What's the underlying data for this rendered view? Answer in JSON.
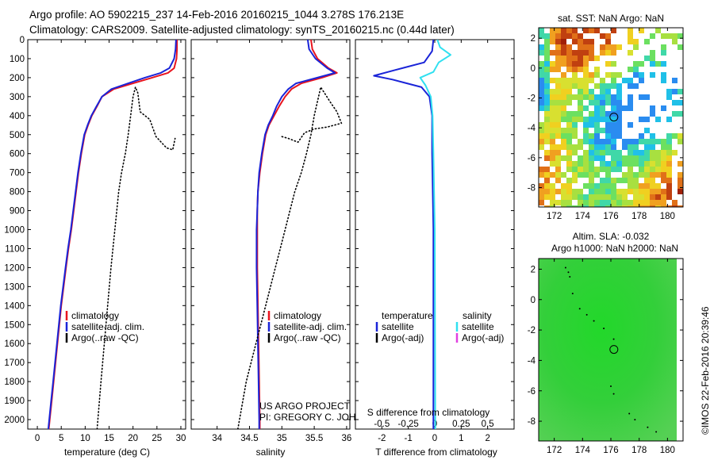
{
  "header": {
    "line1": "Argo profile: AO 5902215_237 14-Feb-2016 20160215_1044 3.278S 176.213E",
    "line2": "Climatology: CARS2009. Satellite-adjusted climatology: synTS_20160215.nc (0.44d later)"
  },
  "colors": {
    "climatology": "#e8141e",
    "satellite": "#1a24d8",
    "argo": "#000000",
    "salinity_satellite": "#30e0f0",
    "salinity_argo": "#e040e0"
  },
  "chart_data": [
    {
      "type": "line",
      "id": "temperature_profile",
      "xlabel": "temperature (deg C)",
      "xlim": [
        -2,
        31
      ],
      "xticks": [
        "0",
        "5",
        "10",
        "15",
        "20",
        "25",
        "30"
      ],
      "ylim": [
        2050,
        0
      ],
      "yticks": [
        "0",
        "100",
        "200",
        "300",
        "400",
        "500",
        "600",
        "700",
        "800",
        "900",
        "1000",
        "1100",
        "1200",
        "1300",
        "1400",
        "1500",
        "1600",
        "1700",
        "1800",
        "1900",
        "2000"
      ],
      "legend": [
        "climatology",
        "satellite-adj. clim.",
        "Argo(..raw -QC)"
      ],
      "series": [
        {
          "name": "climatology",
          "color": "#e8141e",
          "style": "solid",
          "points": [
            [
              29.2,
              0
            ],
            [
              29.2,
              50
            ],
            [
              29.1,
              100
            ],
            [
              28.6,
              150
            ],
            [
              27.3,
              175
            ],
            [
              24,
              200
            ],
            [
              20,
              230
            ],
            [
              16,
              260
            ],
            [
              13.5,
              300
            ],
            [
              12.5,
              350
            ],
            [
              11.4,
              400
            ],
            [
              10.6,
              450
            ],
            [
              9.9,
              500
            ],
            [
              9.2,
              600
            ],
            [
              8.6,
              700
            ],
            [
              8.1,
              800
            ],
            [
              7.6,
              900
            ],
            [
              7.1,
              1000
            ],
            [
              6.5,
              1100
            ],
            [
              6,
              1200
            ],
            [
              5.5,
              1300
            ],
            [
              5,
              1400
            ],
            [
              4.6,
              1500
            ],
            [
              4.2,
              1600
            ],
            [
              3.8,
              1700
            ],
            [
              3.4,
              1800
            ],
            [
              3,
              1900
            ],
            [
              2.6,
              2000
            ],
            [
              2.4,
              2050
            ]
          ]
        },
        {
          "name": "satellite-adj. clim.",
          "color": "#1a24d8",
          "style": "solid",
          "points": [
            [
              29,
              0
            ],
            [
              28.9,
              50
            ],
            [
              28.6,
              100
            ],
            [
              27.6,
              150
            ],
            [
              25.8,
              175
            ],
            [
              22.5,
              200
            ],
            [
              19,
              230
            ],
            [
              15.5,
              260
            ],
            [
              13.5,
              300
            ],
            [
              12.4,
              350
            ],
            [
              11.3,
              400
            ],
            [
              10.5,
              450
            ],
            [
              9.8,
              500
            ],
            [
              9.1,
              600
            ],
            [
              8.5,
              700
            ],
            [
              8,
              800
            ],
            [
              7.5,
              900
            ],
            [
              7,
              1000
            ],
            [
              6.4,
              1100
            ],
            [
              5.9,
              1200
            ],
            [
              5.4,
              1300
            ],
            [
              4.9,
              1400
            ],
            [
              4.5,
              1500
            ],
            [
              4.1,
              1600
            ],
            [
              3.7,
              1700
            ],
            [
              3.3,
              1800
            ],
            [
              2.9,
              1900
            ],
            [
              2.5,
              2000
            ],
            [
              2.3,
              2050
            ]
          ]
        },
        {
          "name": "Argo(..raw -QC)",
          "color": "#000000",
          "style": "dotted",
          "points": [
            [
              12.5,
              2050
            ],
            [
              13.3,
              1800
            ],
            [
              14,
              1600
            ],
            [
              14.7,
              1400
            ],
            [
              15.4,
              1200
            ],
            [
              16.2,
              1000
            ],
            [
              17,
              800
            ],
            [
              17.6,
              700
            ],
            [
              18.4,
              600
            ],
            [
              19,
              500
            ],
            [
              19.5,
              400
            ],
            [
              20,
              300
            ],
            [
              20.5,
              250
            ],
            [
              21,
              280
            ],
            [
              21.5,
              380
            ],
            [
              23.5,
              420
            ],
            [
              24.8,
              510
            ],
            [
              27,
              570
            ],
            [
              28.3,
              580
            ],
            [
              28.8,
              520
            ]
          ]
        }
      ]
    },
    {
      "type": "line",
      "id": "salinity_profile",
      "xlabel": "salinity",
      "xlim": [
        33.6,
        36.05
      ],
      "xticks": [
        "34",
        "34.5",
        "35",
        "35.5",
        "36"
      ],
      "ylim": [
        2050,
        0
      ],
      "legend": [
        "climatology",
        "satellite-adj. clim.",
        "Argo(..raw -QC)"
      ],
      "annotation": [
        "US ARGO PROJECT",
        "PI: GREGORY C. JOHNSON"
      ],
      "series": [
        {
          "name": "climatology",
          "color": "#e8141e",
          "style": "solid",
          "points": [
            [
              35.45,
              0
            ],
            [
              35.47,
              50
            ],
            [
              35.55,
              100
            ],
            [
              35.72,
              150
            ],
            [
              35.85,
              175
            ],
            [
              35.62,
              200
            ],
            [
              35.3,
              230
            ],
            [
              35.15,
              260
            ],
            [
              35.05,
              300
            ],
            [
              34.96,
              350
            ],
            [
              34.88,
              400
            ],
            [
              34.8,
              450
            ],
            [
              34.75,
              500
            ],
            [
              34.7,
              600
            ],
            [
              34.66,
              700
            ],
            [
              34.63,
              800
            ],
            [
              34.62,
              900
            ],
            [
              34.62,
              1000
            ],
            [
              34.62,
              1200
            ],
            [
              34.63,
              1400
            ],
            [
              34.64,
              1600
            ],
            [
              34.65,
              1800
            ],
            [
              34.66,
              2000
            ],
            [
              34.66,
              2050
            ]
          ]
        },
        {
          "name": "satellite-adj. clim.",
          "color": "#1a24d8",
          "style": "solid",
          "points": [
            [
              35.4,
              0
            ],
            [
              35.42,
              50
            ],
            [
              35.52,
              100
            ],
            [
              35.7,
              150
            ],
            [
              35.82,
              175
            ],
            [
              35.55,
              200
            ],
            [
              35.22,
              230
            ],
            [
              35.1,
              260
            ],
            [
              35.0,
              300
            ],
            [
              34.92,
              350
            ],
            [
              34.86,
              400
            ],
            [
              34.79,
              450
            ],
            [
              34.74,
              500
            ],
            [
              34.69,
              600
            ],
            [
              34.65,
              700
            ],
            [
              34.63,
              800
            ],
            [
              34.62,
              900
            ],
            [
              34.61,
              1000
            ],
            [
              34.61,
              1200
            ],
            [
              34.62,
              1400
            ],
            [
              34.63,
              1600
            ],
            [
              34.64,
              1800
            ],
            [
              34.65,
              2000
            ],
            [
              34.65,
              2050
            ]
          ]
        },
        {
          "name": "Argo(..raw -QC)",
          "color": "#000000",
          "style": "dotted",
          "points": [
            [
              34.32,
              2050
            ],
            [
              34.45,
              1800
            ],
            [
              34.6,
              1600
            ],
            [
              34.75,
              1400
            ],
            [
              34.9,
              1200
            ],
            [
              35.05,
              1000
            ],
            [
              35.2,
              800
            ],
            [
              35.3,
              700
            ],
            [
              35.38,
              600
            ],
            [
              35.45,
              500
            ],
            [
              35.5,
              400
            ],
            [
              35.6,
              250
            ],
            [
              35.75,
              330
            ],
            [
              35.85,
              380
            ],
            [
              35.92,
              440
            ],
            [
              35.7,
              460
            ],
            [
              35.5,
              470
            ],
            [
              35.35,
              490
            ],
            [
              35.25,
              540
            ],
            [
              35.1,
              520
            ],
            [
              35.0,
              510
            ]
          ]
        }
      ]
    },
    {
      "type": "line",
      "id": "difference_from_climatology",
      "xlabel": "T difference from climatology",
      "xlim": [
        -3,
        3
      ],
      "xticks": [
        "-2",
        "-1",
        "0",
        "1",
        "2"
      ],
      "top_label": "S difference from climatology",
      "top_ticks": [
        "-0.5",
        "-0.25",
        "0",
        "0.25",
        "0.5"
      ],
      "ylim": [
        2050,
        0
      ],
      "legend": {
        "temperature_title": "temperature",
        "salinity_title": "salinity",
        "temperature": [
          "satellite",
          "Argo(-adj)"
        ],
        "salinity": [
          "satellite",
          "Argo(-adj)"
        ]
      },
      "series": [
        {
          "name": "temperature satellite",
          "color": "#1a24d8",
          "style": "solid",
          "points": [
            [
              -0.05,
              0
            ],
            [
              -0.1,
              60
            ],
            [
              -0.4,
              120
            ],
            [
              -1.5,
              160
            ],
            [
              -2.3,
              190
            ],
            [
              -1.6,
              210
            ],
            [
              -0.5,
              250
            ],
            [
              -0.2,
              300
            ],
            [
              -0.1,
              400
            ],
            [
              -0.1,
              600
            ],
            [
              -0.05,
              1000
            ],
            [
              -0.05,
              2050
            ]
          ]
        },
        {
          "name": "salinity satellite",
          "color": "#30e0f0",
          "style": "solid",
          "points": [
            [
              0.1,
              0
            ],
            [
              0.2,
              40
            ],
            [
              0.6,
              80
            ],
            [
              0.15,
              120
            ],
            [
              -0.05,
              170
            ],
            [
              -0.55,
              200
            ],
            [
              -0.35,
              240
            ],
            [
              -0.15,
              300
            ],
            [
              -0.08,
              400
            ],
            [
              -0.05,
              600
            ],
            [
              0,
              1000
            ],
            [
              0.02,
              2050
            ]
          ]
        }
      ]
    },
    {
      "type": "heatmap",
      "id": "satellite_sst_map",
      "title": "sat. SST: NaN Argo: NaN",
      "xlim": [
        170.9,
        181.1
      ],
      "xticks": [
        "172",
        "174",
        "176",
        "178",
        "180"
      ],
      "ylim": [
        -9.3,
        2.7
      ],
      "yticks": [
        "2",
        "0",
        "-2",
        "-4",
        "-6",
        "-8"
      ],
      "argo_position": [
        176.213,
        -3.278
      ]
    },
    {
      "type": "heatmap",
      "id": "altimetry_sla_map",
      "title": [
        "Altim. SLA: -0.032",
        "Argo h1000: NaN h2000: NaN"
      ],
      "xlim": [
        170.9,
        181.1
      ],
      "xticks": [
        "172",
        "174",
        "176",
        "178",
        "180"
      ],
      "ylim": [
        -9.3,
        2.7
      ],
      "yticks": [
        "2",
        "0",
        "-2",
        "-4",
        "-6",
        "-8"
      ],
      "argo_position": [
        176.213,
        -3.278
      ]
    }
  ],
  "stamp": "©IMOS 22-Feb-2016 20:39:46"
}
